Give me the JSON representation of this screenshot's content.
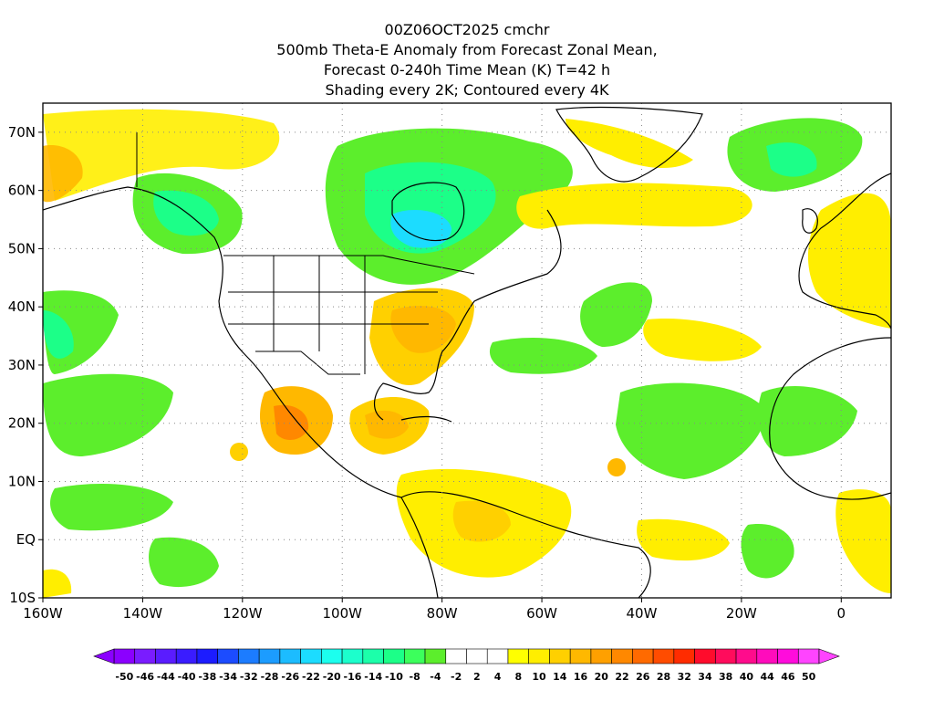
{
  "title": {
    "line1": "00Z06OCT2025 cmchr",
    "line2": "500mb Theta-E Anomaly from Forecast Zonal Mean,",
    "line3": "Forecast 0-240h Time Mean (K) T=42 h",
    "line4": "Shading every 2K; Contoured every 4K"
  },
  "map": {
    "lon_range": [
      -160,
      10
    ],
    "lat_range": [
      -10,
      75
    ],
    "lon_ticks": [
      {
        "value": -160,
        "label": "160W"
      },
      {
        "value": -140,
        "label": "140W"
      },
      {
        "value": -120,
        "label": "120W"
      },
      {
        "value": -100,
        "label": "100W"
      },
      {
        "value": -80,
        "label": "80W"
      },
      {
        "value": -60,
        "label": "60W"
      },
      {
        "value": -40,
        "label": "40W"
      },
      {
        "value": -20,
        "label": "20W"
      },
      {
        "value": 0,
        "label": "0"
      }
    ],
    "lat_ticks": [
      {
        "value": 70,
        "label": "70N"
      },
      {
        "value": 60,
        "label": "60N"
      },
      {
        "value": 50,
        "label": "50N"
      },
      {
        "value": 40,
        "label": "40N"
      },
      {
        "value": 30,
        "label": "30N"
      },
      {
        "value": 20,
        "label": "20N"
      },
      {
        "value": 10,
        "label": "10N"
      },
      {
        "value": 0,
        "label": "EQ"
      },
      {
        "value": -10,
        "label": "10S"
      }
    ]
  },
  "colorbar": {
    "labels": [
      "-50",
      "-46",
      "-44",
      "-40",
      "-38",
      "-34",
      "-32",
      "-28",
      "-26",
      "-22",
      "-20",
      "-16",
      "-14",
      "-10",
      "-8",
      "-4",
      "-2",
      "2",
      "4",
      "8",
      "10",
      "14",
      "16",
      "20",
      "22",
      "26",
      "28",
      "32",
      "34",
      "38",
      "40",
      "44",
      "46",
      "50"
    ],
    "colors": [
      "#8b00ff",
      "#7a1cff",
      "#5a1cff",
      "#3a1cff",
      "#1c1cff",
      "#1c4cff",
      "#1c7cff",
      "#1c9cff",
      "#1cbcff",
      "#1cdcff",
      "#1cffee",
      "#1cffcc",
      "#1cffaa",
      "#1cff88",
      "#3cff5c",
      "#5cee2c",
      "#ffffff",
      "#ffffff",
      "#ffffff",
      "#ffff00",
      "#ffee00",
      "#ffd000",
      "#ffb800",
      "#ffa000",
      "#ff8800",
      "#ff6a00",
      "#ff4c00",
      "#ff2c00",
      "#ff0c2c",
      "#ff0c5c",
      "#ff0c8c",
      "#ff0cbc",
      "#ff0cdc",
      "#ff44ff"
    ]
  },
  "features": [
    {
      "name": "alaska-green-anomaly",
      "lon": -127,
      "lat": 57,
      "rx": 11,
      "ry": 8,
      "level": -8
    },
    {
      "name": "canada-green-anomaly",
      "lon": -85,
      "lat": 58,
      "rx": 22,
      "ry": 13,
      "level": -8
    },
    {
      "name": "hudson-cyan-anomaly",
      "lon": -86,
      "lat": 55,
      "rx": 10,
      "ry": 6,
      "level": -20
    },
    {
      "name": "mexico-orange-anomaly",
      "lon": -111,
      "lat": 20,
      "rx": 7,
      "ry": 5,
      "level": 16
    },
    {
      "name": "caribbean-orange-anomaly",
      "lon": -85,
      "lat": 20,
      "rx": 6,
      "ry": 4,
      "level": 10
    },
    {
      "name": "eastern-us-orange-anomaly",
      "lon": -84,
      "lat": 38,
      "rx": 7,
      "ry": 6,
      "level": 10
    },
    {
      "name": "greenland-yellow-anomaly",
      "lon": -42,
      "lat": 60,
      "rx": 18,
      "ry": 5,
      "level": 4
    },
    {
      "name": "atlantic-green-anomaly",
      "lon": -45,
      "lat": 38,
      "rx": 9,
      "ry": 5,
      "level": -8
    },
    {
      "name": "norway-green-anomaly",
      "lon": -10,
      "lat": 67,
      "rx": 9,
      "ry": 5,
      "level": -8
    },
    {
      "name": "pacific-green-anomaly",
      "lon": -140,
      "lat": 20,
      "rx": 14,
      "ry": 6,
      "level": -8
    },
    {
      "name": "africa-green-anomaly",
      "lon": -20,
      "lat": 18,
      "rx": 14,
      "ry": 6,
      "level": -8
    },
    {
      "name": "south-america-yellow-anomaly",
      "lon": -65,
      "lat": 2,
      "rx": 16,
      "ry": 8,
      "level": 4
    }
  ]
}
